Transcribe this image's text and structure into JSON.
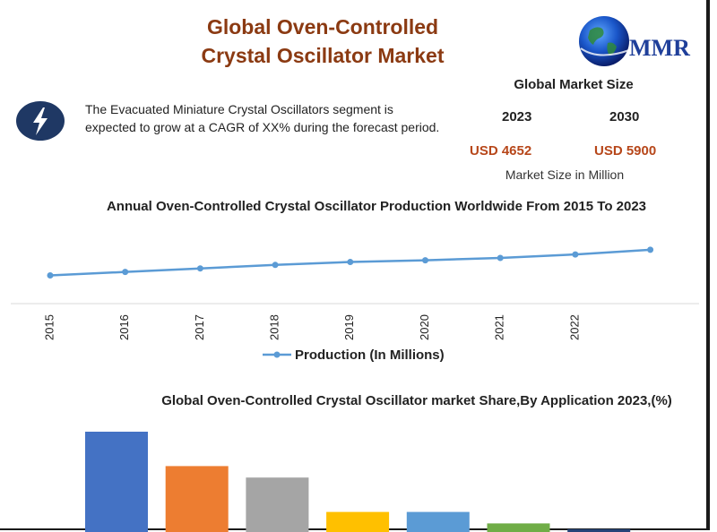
{
  "header": {
    "title_line1": "Global Oven-Controlled",
    "title_line2": "Crystal Oscillator Market",
    "logo_text": "MMR",
    "logo_icon": "globe-icon"
  },
  "market_size": {
    "title": "Global Market Size",
    "year_start": "2023",
    "year_end": "2030",
    "value_start": "USD 4652",
    "value_end": "USD 5900",
    "units": "Market Size in Million"
  },
  "info": {
    "icon": "lightning-bolt-icon",
    "text": "The Evacuated Miniature Crystal Oscillators segment is expected to grow at a CAGR of XX% during the forecast period."
  },
  "colors": {
    "title_brown": "#8b3a12",
    "value_orange": "#b7471a",
    "line_blue": "#5b9bd5",
    "icon_navy": "#1f3864"
  },
  "chart_data": [
    {
      "type": "line",
      "title": "Annual Oven-Controlled Crystal Oscillator  Production Worldwide From 2015 To 2023",
      "x": [
        "2015",
        "2016",
        "2017",
        "2018",
        "2019",
        "2020",
        "2021",
        "2022",
        ""
      ],
      "series": [
        {
          "name": "Production (In Millions)",
          "values": [
            10.0,
            11.2,
            12.4,
            13.6,
            14.6,
            15.2,
            16.0,
            17.2,
            18.8
          ],
          "color": "#5b9bd5"
        }
      ],
      "ylim": [
        0,
        40
      ],
      "grid": false,
      "legend": "bottom"
    },
    {
      "type": "bar",
      "title": "Global Oven-Controlled Crystal Oscillator market Share,By Application 2023,(%)",
      "categories": [
        "",
        "",
        "",
        "",
        "",
        "",
        ""
      ],
      "values": [
        35,
        23,
        19,
        7,
        7,
        3,
        1
      ],
      "colors": [
        "#4472c4",
        "#ed7d31",
        "#a5a5a5",
        "#ffc000",
        "#5b9bd5",
        "#70ad47",
        "#264478"
      ],
      "ylim": [
        0,
        40
      ]
    }
  ]
}
